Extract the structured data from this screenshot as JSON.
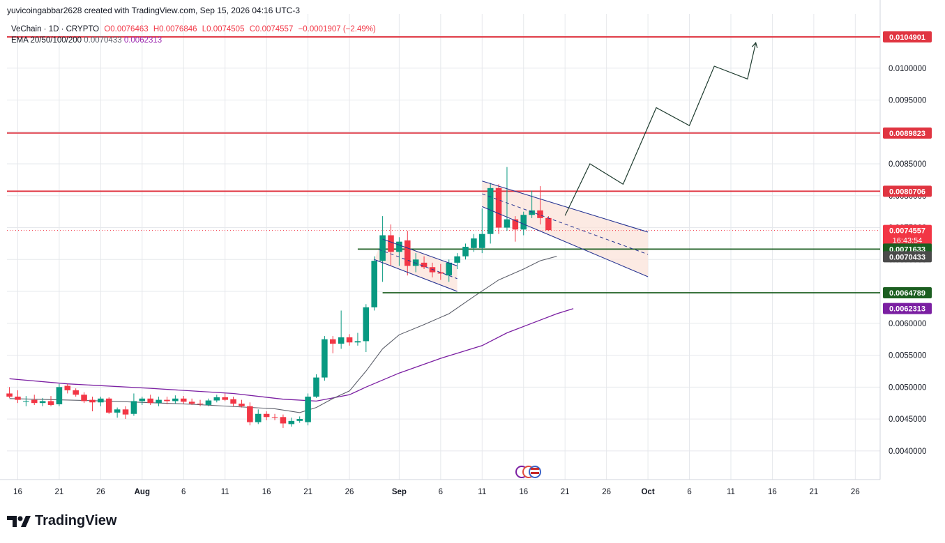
{
  "header": {
    "created_by": "yuvicoingabbar2628 created with TradingView.com, Sep 15, 2026 04:16 UTC-3"
  },
  "legend": {
    "symbol": "VeChain · 1D · CRYPTO",
    "open": "O0.0076463",
    "high": "H0.0076846",
    "low": "L0.0074505",
    "close": "C0.0074557",
    "change": "−0.0001907 (−2.49%)",
    "ema_label": "EMA 20/50/100/200",
    "ema1": "0.0070433",
    "ema2": "0.0062313"
  },
  "footer": {
    "brand": "TradingView"
  },
  "colors": {
    "up": "#089981",
    "down": "#f23645",
    "resistance": "#e03541",
    "support": "#1b5e20",
    "ema_gray": "#5d606b",
    "ema_purple": "#7b1fa2",
    "channel_line": "#283593",
    "channel_fill": "#fbe3d9",
    "grid": "#e6e8ec"
  },
  "chart_data": {
    "type": "candlestick",
    "symbol": "VeChain",
    "ylim": [
      0.00355,
      0.01085
    ],
    "y_ticks": [
      "0.0040000",
      "0.0045000",
      "0.0050000",
      "0.0055000",
      "0.0060000",
      "0.0065000",
      "0.0070000",
      "0.0075000",
      "0.0080000",
      "0.0085000",
      "0.0090000",
      "0.0095000",
      "0.0100000",
      "0.0105000"
    ],
    "x_ticks": [
      "16",
      "21",
      "26",
      "Aug",
      "6",
      "11",
      "16",
      "21",
      "26",
      "Sep",
      "6",
      "11",
      "16",
      "21",
      "26",
      "Oct",
      "6",
      "11",
      "16",
      "21",
      "26"
    ],
    "x_tick_days": [
      -46,
      -41,
      -36,
      -31,
      -26,
      -21,
      -16,
      -11,
      -6,
      0,
      5,
      10,
      15,
      20,
      25,
      30,
      35,
      40,
      45,
      50,
      55
    ],
    "x_day_range": [
      -47.3,
      58
    ],
    "candles": [
      {
        "d": -47,
        "o": 0.0049,
        "h": 0.005,
        "l": 0.00483,
        "c": 0.00485
      },
      {
        "d": -46,
        "o": 0.00485,
        "h": 0.00495,
        "l": 0.00475,
        "c": 0.0048
      },
      {
        "d": -45,
        "o": 0.00478,
        "h": 0.00486,
        "l": 0.0047,
        "c": 0.00478
      },
      {
        "d": -44,
        "o": 0.0048,
        "h": 0.00488,
        "l": 0.00472,
        "c": 0.00475
      },
      {
        "d": -43,
        "o": 0.00475,
        "h": 0.00483,
        "l": 0.0047,
        "c": 0.00478
      },
      {
        "d": -42,
        "o": 0.00478,
        "h": 0.00486,
        "l": 0.0047,
        "c": 0.00472
      },
      {
        "d": -41,
        "o": 0.00473,
        "h": 0.00505,
        "l": 0.0047,
        "c": 0.005
      },
      {
        "d": -40,
        "o": 0.00502,
        "h": 0.00505,
        "l": 0.0049,
        "c": 0.00495
      },
      {
        "d": -39,
        "o": 0.00495,
        "h": 0.00498,
        "l": 0.00485,
        "c": 0.00488
      },
      {
        "d": -38,
        "o": 0.00488,
        "h": 0.00492,
        "l": 0.00475,
        "c": 0.00478
      },
      {
        "d": -37,
        "o": 0.0048,
        "h": 0.00485,
        "l": 0.00462,
        "c": 0.00476
      },
      {
        "d": -36,
        "o": 0.00476,
        "h": 0.00485,
        "l": 0.0047,
        "c": 0.00482
      },
      {
        "d": -35,
        "o": 0.00482,
        "h": 0.00484,
        "l": 0.00458,
        "c": 0.0046
      },
      {
        "d": -34,
        "o": 0.0046,
        "h": 0.00468,
        "l": 0.00452,
        "c": 0.00465
      },
      {
        "d": -33,
        "o": 0.00465,
        "h": 0.0047,
        "l": 0.0045,
        "c": 0.00457
      },
      {
        "d": -32,
        "o": 0.00458,
        "h": 0.0049,
        "l": 0.00455,
        "c": 0.00478
      },
      {
        "d": -31,
        "o": 0.00478,
        "h": 0.00485,
        "l": 0.00472,
        "c": 0.00482
      },
      {
        "d": -30,
        "o": 0.00482,
        "h": 0.00488,
        "l": 0.00472,
        "c": 0.00475
      },
      {
        "d": -29,
        "o": 0.00475,
        "h": 0.00485,
        "l": 0.0047,
        "c": 0.0048
      },
      {
        "d": -28,
        "o": 0.0048,
        "h": 0.00485,
        "l": 0.00473,
        "c": 0.00478
      },
      {
        "d": -27,
        "o": 0.00478,
        "h": 0.00487,
        "l": 0.00474,
        "c": 0.00482
      },
      {
        "d": -26,
        "o": 0.00482,
        "h": 0.00486,
        "l": 0.00474,
        "c": 0.00477
      },
      {
        "d": -25,
        "o": 0.00477,
        "h": 0.00482,
        "l": 0.00472,
        "c": 0.00474
      },
      {
        "d": -24,
        "o": 0.00474,
        "h": 0.0048,
        "l": 0.0047,
        "c": 0.00473
      },
      {
        "d": -23,
        "o": 0.00472,
        "h": 0.00482,
        "l": 0.0047,
        "c": 0.00479
      },
      {
        "d": -22,
        "o": 0.00479,
        "h": 0.00488,
        "l": 0.00476,
        "c": 0.00484
      },
      {
        "d": -21,
        "o": 0.00484,
        "h": 0.0049,
        "l": 0.00478,
        "c": 0.0048
      },
      {
        "d": -20,
        "o": 0.00481,
        "h": 0.00485,
        "l": 0.0047,
        "c": 0.00474
      },
      {
        "d": -19,
        "o": 0.00474,
        "h": 0.0048,
        "l": 0.00468,
        "c": 0.0047
      },
      {
        "d": -18,
        "o": 0.0047,
        "h": 0.00476,
        "l": 0.0044,
        "c": 0.00445
      },
      {
        "d": -17,
        "o": 0.00445,
        "h": 0.00465,
        "l": 0.00442,
        "c": 0.00458
      },
      {
        "d": -16,
        "o": 0.00458,
        "h": 0.00462,
        "l": 0.00448,
        "c": 0.00453
      },
      {
        "d": -15,
        "o": 0.00453,
        "h": 0.00458,
        "l": 0.00448,
        "c": 0.00452
      },
      {
        "d": -14,
        "o": 0.00453,
        "h": 0.00457,
        "l": 0.00436,
        "c": 0.00443
      },
      {
        "d": -13,
        "o": 0.00442,
        "h": 0.00452,
        "l": 0.00438,
        "c": 0.00447
      },
      {
        "d": -12,
        "o": 0.00447,
        "h": 0.00454,
        "l": 0.00444,
        "c": 0.0045
      },
      {
        "d": -11,
        "o": 0.00445,
        "h": 0.0049,
        "l": 0.0044,
        "c": 0.00485
      },
      {
        "d": -10,
        "o": 0.00485,
        "h": 0.0052,
        "l": 0.00483,
        "c": 0.00515
      },
      {
        "d": -9,
        "o": 0.00515,
        "h": 0.0058,
        "l": 0.0051,
        "c": 0.00575
      },
      {
        "d": -8,
        "o": 0.00575,
        "h": 0.0058,
        "l": 0.00553,
        "c": 0.00568
      },
      {
        "d": -7,
        "o": 0.00568,
        "h": 0.0062,
        "l": 0.0056,
        "c": 0.00578
      },
      {
        "d": -6,
        "o": 0.00578,
        "h": 0.00583,
        "l": 0.00565,
        "c": 0.0057
      },
      {
        "d": -5,
        "o": 0.0057,
        "h": 0.00585,
        "l": 0.00565,
        "c": 0.00572
      },
      {
        "d": -4,
        "o": 0.00572,
        "h": 0.0063,
        "l": 0.00555,
        "c": 0.00625
      },
      {
        "d": -3,
        "o": 0.00625,
        "h": 0.00705,
        "l": 0.0062,
        "c": 0.00698
      },
      {
        "d": -2,
        "o": 0.00698,
        "h": 0.00768,
        "l": 0.00665,
        "c": 0.00738
      },
      {
        "d": -1,
        "o": 0.00738,
        "h": 0.00755,
        "l": 0.0069,
        "c": 0.00712
      },
      {
        "d": 0,
        "o": 0.00712,
        "h": 0.00735,
        "l": 0.0069,
        "c": 0.00728
      },
      {
        "d": 1,
        "o": 0.0073,
        "h": 0.00745,
        "l": 0.00675,
        "c": 0.0069
      },
      {
        "d": 2,
        "o": 0.0069,
        "h": 0.0071,
        "l": 0.0068,
        "c": 0.007
      },
      {
        "d": 3,
        "o": 0.00695,
        "h": 0.00705,
        "l": 0.00685,
        "c": 0.00688
      },
      {
        "d": 4,
        "o": 0.00688,
        "h": 0.00695,
        "l": 0.00672,
        "c": 0.0068
      },
      {
        "d": 5,
        "o": 0.0068,
        "h": 0.00693,
        "l": 0.00668,
        "c": 0.00678
      },
      {
        "d": 6,
        "o": 0.00675,
        "h": 0.007,
        "l": 0.00665,
        "c": 0.00695
      },
      {
        "d": 7,
        "o": 0.00695,
        "h": 0.0071,
        "l": 0.00685,
        "c": 0.00705
      },
      {
        "d": 8,
        "o": 0.00705,
        "h": 0.00725,
        "l": 0.007,
        "c": 0.0072
      },
      {
        "d": 9,
        "o": 0.00718,
        "h": 0.0074,
        "l": 0.00712,
        "c": 0.00733
      },
      {
        "d": 10,
        "o": 0.00718,
        "h": 0.0078,
        "l": 0.0071,
        "c": 0.0074
      },
      {
        "d": 11,
        "o": 0.0074,
        "h": 0.0082,
        "l": 0.00725,
        "c": 0.00812
      },
      {
        "d": 12,
        "o": 0.00812,
        "h": 0.00818,
        "l": 0.0074,
        "c": 0.0075
      },
      {
        "d": 13,
        "o": 0.0075,
        "h": 0.00845,
        "l": 0.00745,
        "c": 0.00763
      },
      {
        "d": 14,
        "o": 0.00763,
        "h": 0.00768,
        "l": 0.00728,
        "c": 0.00747
      },
      {
        "d": 15,
        "o": 0.00747,
        "h": 0.00775,
        "l": 0.00738,
        "c": 0.0077
      },
      {
        "d": 16,
        "o": 0.0077,
        "h": 0.00808,
        "l": 0.00765,
        "c": 0.00777
      },
      {
        "d": 17,
        "o": 0.00777,
        "h": 0.00815,
        "l": 0.00755,
        "c": 0.00765
      },
      {
        "d": 18,
        "o": 0.00765,
        "h": 0.00768,
        "l": 0.00745,
        "c": 0.00746
      }
    ],
    "ema_20": [
      [
        -47,
        0.00482
      ],
      [
        -35,
        0.00478
      ],
      [
        -25,
        0.00473
      ],
      [
        -15,
        0.00466
      ],
      [
        -12,
        0.0046
      ],
      [
        -10,
        0.00468
      ],
      [
        -8,
        0.00482
      ],
      [
        -6,
        0.00494
      ],
      [
        -4,
        0.00525
      ],
      [
        -2,
        0.0056
      ],
      [
        0,
        0.00582
      ],
      [
        3,
        0.00598
      ],
      [
        6,
        0.00615
      ],
      [
        9,
        0.00642
      ],
      [
        12,
        0.00668
      ],
      [
        15,
        0.00685
      ],
      [
        17,
        0.00698
      ],
      [
        19,
        0.00705
      ]
    ],
    "ema_50": [
      [
        -47,
        0.00513
      ],
      [
        -40,
        0.00505
      ],
      [
        -30,
        0.00498
      ],
      [
        -20,
        0.0049
      ],
      [
        -14,
        0.00481
      ],
      [
        -10,
        0.00478
      ],
      [
        -8,
        0.00483
      ],
      [
        -6,
        0.00488
      ],
      [
        -4,
        0.005
      ],
      [
        0,
        0.00522
      ],
      [
        5,
        0.00545
      ],
      [
        10,
        0.00565
      ],
      [
        13,
        0.00585
      ],
      [
        16,
        0.006
      ],
      [
        19,
        0.00615
      ],
      [
        21,
        0.00623
      ]
    ],
    "resistance_levels": [
      0.0104901,
      0.0089823,
      0.0080706
    ],
    "support_levels": [
      {
        "value": 0.0071633,
        "from_day": -5
      },
      {
        "value": 0.0064789,
        "from_day": -2
      }
    ],
    "channel_1": {
      "upper": [
        [
          -2,
          0.00732
        ],
        [
          7,
          0.0069
        ]
      ],
      "lower": [
        [
          -3,
          0.007
        ],
        [
          7,
          0.0065
        ]
      ]
    },
    "channel_2": {
      "upper": [
        [
          10,
          0.00823
        ],
        [
          30,
          0.00743
        ]
      ],
      "lower": [
        [
          10,
          0.00783
        ],
        [
          30,
          0.00673
        ]
      ]
    },
    "projection_path": [
      [
        20,
        0.00769
      ],
      [
        23,
        0.0085
      ],
      [
        27,
        0.00818
      ],
      [
        31,
        0.00938
      ],
      [
        35,
        0.0091
      ],
      [
        38,
        0.01003
      ],
      [
        42,
        0.00983
      ],
      [
        43,
        0.0104
      ]
    ],
    "price_labels": [
      {
        "text": "0.0104901",
        "value": 0.0104901,
        "color": "#e03541"
      },
      {
        "text": "0.0089823",
        "value": 0.0089823,
        "color": "#e03541"
      },
      {
        "text": "0.0080706",
        "value": 0.0080706,
        "color": "#e03541"
      },
      {
        "text": "0.0074557",
        "value": 0.0074557,
        "color": "#f23645",
        "sub": "16:43:54"
      },
      {
        "text": "0.0071633",
        "value": 0.0071633,
        "color": "#1b5e20"
      },
      {
        "text": "0.0070433",
        "value": 0.0070433,
        "color": "#4a4a4a"
      },
      {
        "text": "0.0064789",
        "value": 0.0064789,
        "color": "#1b5e20"
      },
      {
        "text": "0.0062313",
        "value": 0.0062313,
        "color": "#7b1fa2"
      }
    ],
    "current_price": 0.0074557
  }
}
